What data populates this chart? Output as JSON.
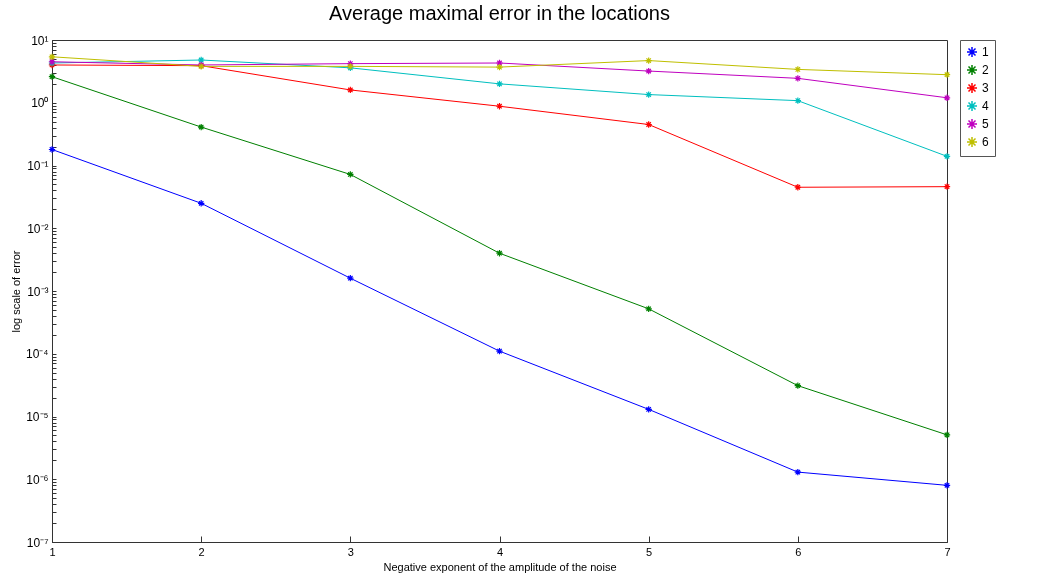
{
  "chart_data": {
    "type": "line",
    "title": "Average maximal error in the locations",
    "xlabel": "Negative exponent of the amplitude of the noise",
    "ylabel": "log scale of error",
    "x": [
      1,
      2,
      3,
      4,
      5,
      6,
      7
    ],
    "xlim": [
      1,
      7
    ],
    "xticks": [
      1,
      2,
      3,
      4,
      5,
      6,
      7
    ],
    "ylim": [
      1e-07,
      10
    ],
    "log": "y",
    "grid": false,
    "legend": "top right",
    "marker": "cross",
    "line_style": "solid",
    "yticks": [
      {
        "value": 1e-07,
        "label": "10⁻⁷"
      },
      {
        "value": 2e-07,
        "label": null
      },
      {
        "value": 3e-07,
        "label": null
      },
      {
        "value": 4e-07,
        "label": null
      },
      {
        "value": 5e-07,
        "label": null
      },
      {
        "value": 6e-07,
        "label": null
      },
      {
        "value": 7e-07,
        "label": null
      },
      {
        "value": 8e-07,
        "label": null
      },
      {
        "value": 9e-07,
        "label": null
      },
      {
        "value": 1e-06,
        "label": "10⁻⁶"
      },
      {
        "value": 2e-06,
        "label": null
      },
      {
        "value": 3e-06,
        "label": null
      },
      {
        "value": 4e-06,
        "label": null
      },
      {
        "value": 5e-06,
        "label": null
      },
      {
        "value": 6e-06,
        "label": null
      },
      {
        "value": 7e-06,
        "label": null
      },
      {
        "value": 8e-06,
        "label": null
      },
      {
        "value": 9e-06,
        "label": null
      },
      {
        "value": 1e-05,
        "label": "10⁻⁵"
      },
      {
        "value": 2e-05,
        "label": null
      },
      {
        "value": 3e-05,
        "label": null
      },
      {
        "value": 4e-05,
        "label": null
      },
      {
        "value": 5e-05,
        "label": null
      },
      {
        "value": 6e-05,
        "label": null
      },
      {
        "value": 7e-05,
        "label": null
      },
      {
        "value": 8e-05,
        "label": null
      },
      {
        "value": 9e-05,
        "label": null
      },
      {
        "value": 0.0001,
        "label": "10⁻⁴"
      },
      {
        "value": 0.0002,
        "label": null
      },
      {
        "value": 0.0003,
        "label": null
      },
      {
        "value": 0.0004,
        "label": null
      },
      {
        "value": 0.0005,
        "label": null
      },
      {
        "value": 0.0006,
        "label": null
      },
      {
        "value": 0.0007,
        "label": null
      },
      {
        "value": 0.0008,
        "label": null
      },
      {
        "value": 0.0009,
        "label": null
      },
      {
        "value": 0.001,
        "label": "10⁻³"
      },
      {
        "value": 0.002,
        "label": null
      },
      {
        "value": 0.003,
        "label": null
      },
      {
        "value": 0.004,
        "label": null
      },
      {
        "value": 0.005,
        "label": null
      },
      {
        "value": 0.006,
        "label": null
      },
      {
        "value": 0.007,
        "label": null
      },
      {
        "value": 0.008,
        "label": null
      },
      {
        "value": 0.009,
        "label": null
      },
      {
        "value": 0.01,
        "label": "10⁻²"
      },
      {
        "value": 0.02,
        "label": null
      },
      {
        "value": 0.03,
        "label": null
      },
      {
        "value": 0.04,
        "label": null
      },
      {
        "value": 0.05,
        "label": null
      },
      {
        "value": 0.06,
        "label": null
      },
      {
        "value": 0.07,
        "label": null
      },
      {
        "value": 0.08,
        "label": null
      },
      {
        "value": 0.09,
        "label": null
      },
      {
        "value": 0.1,
        "label": "10⁻¹"
      },
      {
        "value": 0.2,
        "label": null
      },
      {
        "value": 0.3,
        "label": null
      },
      {
        "value": 0.4,
        "label": null
      },
      {
        "value": 0.5,
        "label": null
      },
      {
        "value": 0.6,
        "label": null
      },
      {
        "value": 0.7,
        "label": null
      },
      {
        "value": 0.8,
        "label": null
      },
      {
        "value": 0.9,
        "label": null
      },
      {
        "value": 1,
        "label": "10⁰"
      },
      {
        "value": 2,
        "label": null
      },
      {
        "value": 3,
        "label": null
      },
      {
        "value": 4,
        "label": null
      },
      {
        "value": 5,
        "label": null
      },
      {
        "value": 6,
        "label": null
      },
      {
        "value": 7,
        "label": null
      },
      {
        "value": 8,
        "label": null
      },
      {
        "value": 9,
        "label": null
      },
      {
        "value": 10,
        "label": "10¹"
      }
    ],
    "series": [
      {
        "name": "1",
        "color": "#0000ff",
        "values": [
          0.18,
          0.025,
          0.0016,
          0.00011,
          1.3e-05,
          1.3e-06,
          8e-07
        ]
      },
      {
        "name": "2",
        "color": "#008000",
        "values": [
          2.6,
          0.41,
          0.072,
          0.004,
          0.00052,
          3.1e-05,
          5.1e-06
        ]
      },
      {
        "name": "3",
        "color": "#ff0000",
        "values": [
          4.0,
          3.9,
          1.6,
          0.88,
          0.45,
          0.045,
          0.046
        ]
      },
      {
        "name": "4",
        "color": "#00bfbf",
        "values": [
          4.3,
          4.8,
          3.6,
          2.0,
          1.35,
          1.08,
          0.14
        ]
      },
      {
        "name": "5",
        "color": "#bf00bf",
        "values": [
          4.5,
          4.0,
          4.2,
          4.3,
          3.2,
          2.45,
          1.2
        ]
      },
      {
        "name": "6",
        "color": "#bfbf00",
        "values": [
          5.4,
          3.8,
          3.8,
          3.7,
          4.7,
          3.4,
          2.8
        ]
      }
    ]
  }
}
